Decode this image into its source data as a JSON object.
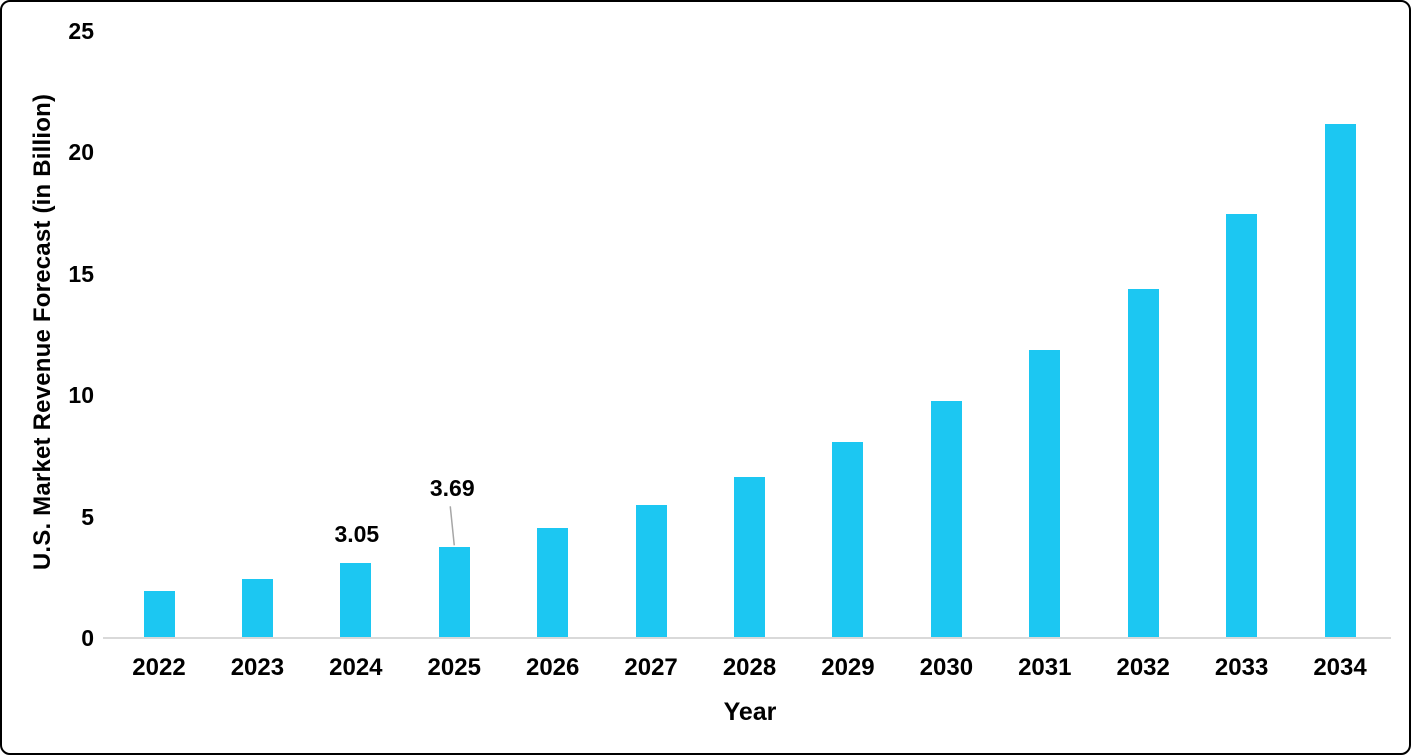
{
  "chart_data": {
    "type": "bar",
    "title": "",
    "xlabel": "Year",
    "ylabel": "U.S. Market Revenue Forecast (in Billion)",
    "categories": [
      "2022",
      "2023",
      "2024",
      "2025",
      "2026",
      "2027",
      "2028",
      "2029",
      "2030",
      "2031",
      "2032",
      "2033",
      "2034"
    ],
    "values": [
      1.9,
      2.4,
      3.05,
      3.69,
      4.48,
      5.44,
      6.6,
      8.01,
      9.72,
      11.8,
      14.33,
      17.39,
      21.11
    ],
    "yticks": [
      0,
      5,
      10,
      15,
      20,
      25
    ],
    "ylim": [
      0,
      25
    ],
    "grid": false,
    "legend": null,
    "data_labels": [
      {
        "category": "2024",
        "text": "3.05",
        "leader_line": false
      },
      {
        "category": "2025",
        "text": "3.69",
        "leader_line": true
      }
    ],
    "colors": {
      "bar": "#1CC7F2",
      "axis_line": "#D9D9D9",
      "leader_line": "#A6A6A6",
      "text": "#000000",
      "background": "#FFFFFF"
    }
  }
}
